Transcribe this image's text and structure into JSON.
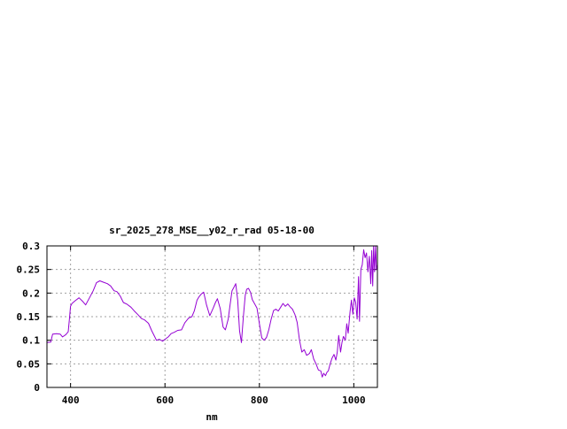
{
  "chart_data": {
    "type": "line",
    "title": "sr_2025_278_MSE__y02_r_rad 05-18-00",
    "xlabel": "nm",
    "ylabel": "",
    "xlim": [
      350,
      1050
    ],
    "ylim": [
      0,
      0.3
    ],
    "xticks": [
      400,
      600,
      800,
      1000
    ],
    "xtick_labels": [
      "400",
      "600",
      "800",
      "1000"
    ],
    "yticks": [
      0,
      0.05,
      0.1,
      0.15,
      0.2,
      0.25,
      0.3
    ],
    "ytick_labels": [
      "0",
      "0.05",
      "0.1",
      "0.15",
      "0.2",
      "0.25",
      "0.3"
    ],
    "grid": true,
    "series": [
      {
        "color": "#9400d3",
        "x": [
          350,
          358,
          362,
          370,
          378,
          383,
          390,
          395,
          398,
          400,
          403,
          410,
          418,
          426,
          432,
          440,
          448,
          455,
          462,
          470,
          478,
          485,
          492,
          498,
          505,
          512,
          520,
          528,
          535,
          542,
          550,
          557,
          565,
          572,
          578,
          582,
          588,
          595,
          600,
          607,
          613,
          620,
          627,
          635,
          642,
          650,
          657,
          662,
          668,
          672,
          677,
          682,
          688,
          695,
          702,
          707,
          711,
          717,
          723,
          728,
          734,
          738,
          742,
          746,
          750,
          754,
          758,
          762,
          766,
          770,
          773,
          777,
          781,
          785,
          790,
          795,
          800,
          805,
          810,
          815,
          820,
          825,
          830,
          835,
          840,
          845,
          850,
          855,
          860,
          865,
          870,
          875,
          880,
          885,
          890,
          895,
          900,
          903,
          906,
          910,
          915,
          920,
          925,
          930,
          933,
          936,
          940,
          943,
          946,
          950,
          954,
          958,
          962,
          965,
          968,
          972,
          975,
          978,
          982,
          985,
          988,
          992,
          995,
          998,
          1001,
          1004,
          1007,
          1010,
          1012,
          1015,
          1018,
          1021,
          1024,
          1027,
          1030,
          1033,
          1036,
          1038,
          1040,
          1042,
          1044,
          1046,
          1048,
          1050
        ],
        "y": [
          0.095,
          0.096,
          0.113,
          0.114,
          0.113,
          0.107,
          0.112,
          0.118,
          0.15,
          0.172,
          0.178,
          0.184,
          0.19,
          0.182,
          0.175,
          0.19,
          0.205,
          0.222,
          0.226,
          0.223,
          0.22,
          0.215,
          0.205,
          0.203,
          0.194,
          0.18,
          0.176,
          0.17,
          0.162,
          0.155,
          0.146,
          0.143,
          0.136,
          0.12,
          0.108,
          0.1,
          0.102,
          0.098,
          0.102,
          0.107,
          0.114,
          0.117,
          0.121,
          0.122,
          0.137,
          0.147,
          0.15,
          0.162,
          0.185,
          0.192,
          0.198,
          0.202,
          0.175,
          0.152,
          0.168,
          0.18,
          0.188,
          0.167,
          0.128,
          0.122,
          0.145,
          0.175,
          0.205,
          0.212,
          0.22,
          0.185,
          0.12,
          0.095,
          0.15,
          0.195,
          0.208,
          0.21,
          0.202,
          0.186,
          0.177,
          0.168,
          0.135,
          0.105,
          0.1,
          0.106,
          0.122,
          0.145,
          0.163,
          0.166,
          0.162,
          0.17,
          0.178,
          0.172,
          0.177,
          0.171,
          0.166,
          0.155,
          0.138,
          0.1,
          0.075,
          0.08,
          0.068,
          0.07,
          0.072,
          0.08,
          0.06,
          0.05,
          0.037,
          0.035,
          0.022,
          0.03,
          0.025,
          0.032,
          0.035,
          0.05,
          0.062,
          0.07,
          0.058,
          0.075,
          0.11,
          0.075,
          0.095,
          0.108,
          0.1,
          0.135,
          0.115,
          0.16,
          0.185,
          0.155,
          0.19,
          0.18,
          0.145,
          0.235,
          0.14,
          0.25,
          0.26,
          0.292,
          0.275,
          0.285,
          0.245,
          0.278,
          0.22,
          0.29,
          0.215,
          0.3,
          0.245,
          0.3,
          0.25,
          0.26
        ]
      }
    ]
  }
}
